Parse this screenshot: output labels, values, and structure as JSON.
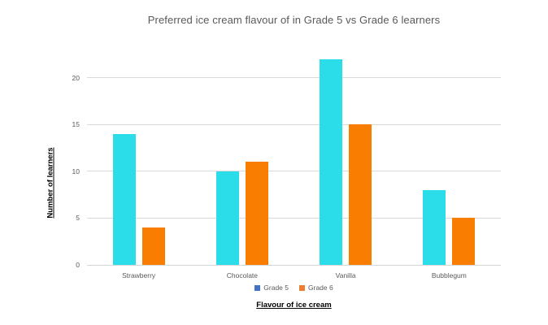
{
  "chart_data": {
    "type": "bar",
    "title": "Preferred ice cream flavour of in Grade 5 vs Grade 6 learners",
    "categories": [
      "Strawberry",
      "Chocolate",
      "Vanilla",
      "Bubblegum"
    ],
    "series": [
      {
        "name": "Grade 5",
        "values": [
          14,
          10,
          22,
          8
        ],
        "bar_color": "#2bdde8",
        "legend_color": "#4472c4"
      },
      {
        "name": "Grade 6",
        "values": [
          4,
          11,
          15,
          5
        ],
        "bar_color": "#f97d01",
        "legend_color": "#ed7d31"
      }
    ],
    "xlabel": "Flavour of ice cream",
    "ylabel": "Number of learners",
    "ylim": [
      0,
      22.5
    ],
    "yticks": [
      0,
      5,
      10,
      15,
      20
    ],
    "grid": true,
    "legend_position": "bottom",
    "colors": {
      "background": "#ffffff",
      "gridline": "#d9d9d9",
      "axis_line": "#d6d6d6",
      "text_gray": "#595959",
      "axis_title_text": "#000000"
    }
  }
}
